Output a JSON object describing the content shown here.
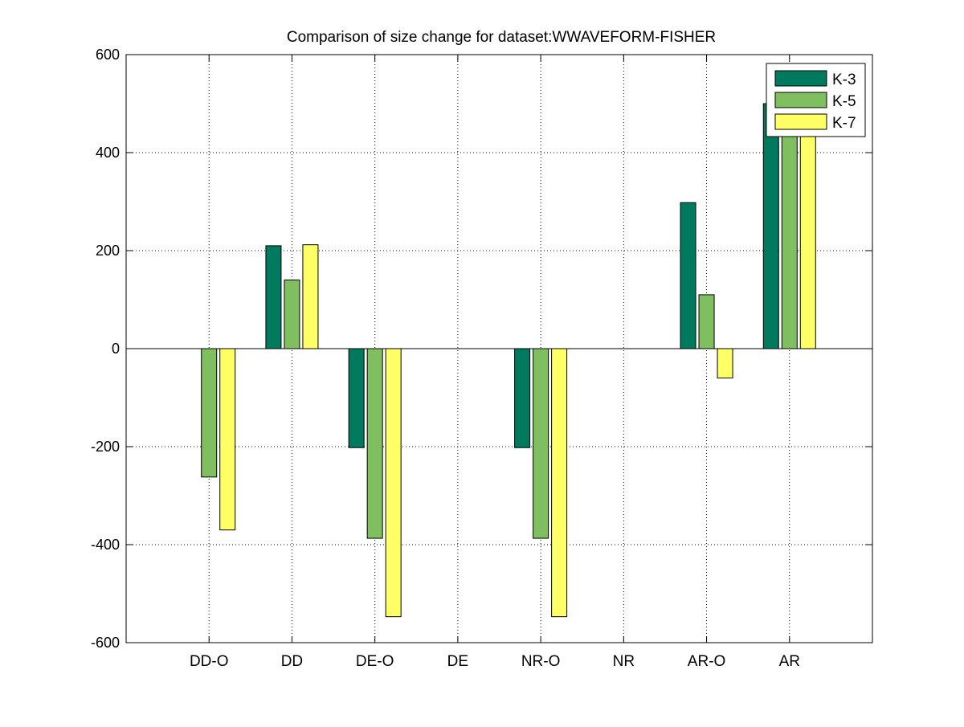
{
  "chart_data": {
    "type": "bar",
    "title": "Comparison of size change for dataset:WWAVEFORM-FISHER",
    "xlabel": "",
    "ylabel": "",
    "categories": [
      "DD-O",
      "DD",
      "DE-O",
      "DE",
      "NR-O",
      "NR",
      "AR-O",
      "AR"
    ],
    "series": [
      {
        "name": "K-3",
        "values": [
          0,
          210,
          -202,
          0,
          -202,
          0,
          298,
          500
        ]
      },
      {
        "name": "K-5",
        "values": [
          -262,
          140,
          -387,
          0,
          -387,
          0,
          110,
          500
        ]
      },
      {
        "name": "K-7",
        "values": [
          -370,
          212,
          -547,
          0,
          -547,
          0,
          -60,
          500
        ]
      }
    ],
    "ylim": [
      -600,
      600
    ],
    "yticks": [
      "-600",
      "-400",
      "-200",
      "0",
      "200",
      "400",
      "600"
    ],
    "grid": true,
    "legend_position": "top-right",
    "colors": {
      "K-3": "#007a5e",
      "K-5": "#7fbf5f",
      "K-7": "#ffff66"
    }
  }
}
